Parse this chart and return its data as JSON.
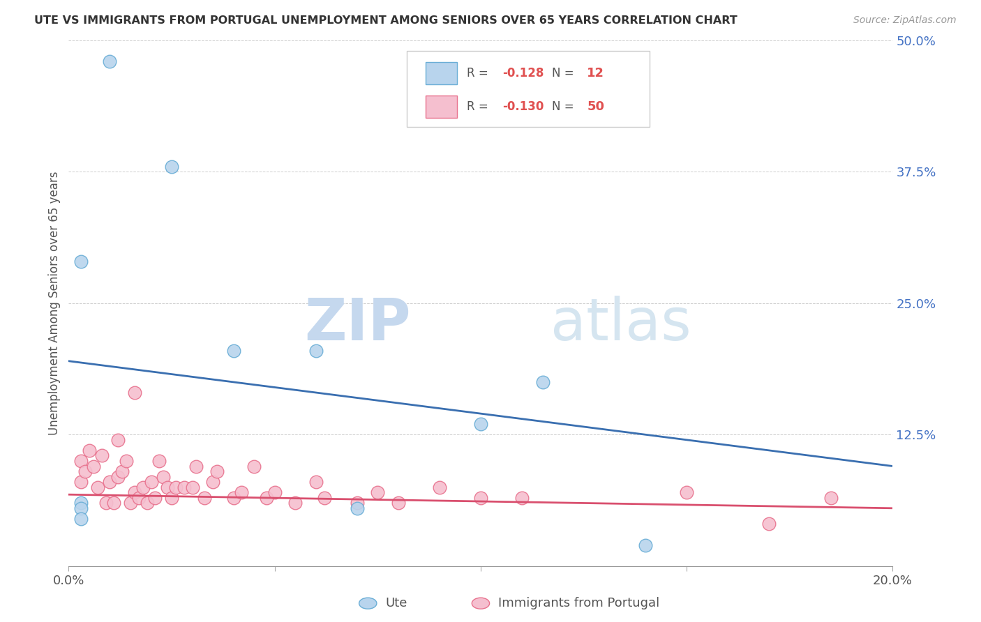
{
  "title": "UTE VS IMMIGRANTS FROM PORTUGAL UNEMPLOYMENT AMONG SENIORS OVER 65 YEARS CORRELATION CHART",
  "source": "Source: ZipAtlas.com",
  "ylabel": "Unemployment Among Seniors over 65 years",
  "xlim": [
    0.0,
    0.2
  ],
  "ylim": [
    0.0,
    0.5
  ],
  "xticks": [
    0.0,
    0.05,
    0.1,
    0.15,
    0.2
  ],
  "xtick_labels": [
    "0.0%",
    "",
    "",
    "",
    "20.0%"
  ],
  "yticks": [
    0.0,
    0.125,
    0.25,
    0.375,
    0.5
  ],
  "ytick_labels": [
    "",
    "12.5%",
    "25.0%",
    "37.5%",
    "50.0%"
  ],
  "legend_ute_R": "-0.128",
  "legend_ute_N": "12",
  "legend_port_R": "-0.130",
  "legend_port_N": "50",
  "ute_color": "#b8d4ed",
  "ute_edge_color": "#6aaed6",
  "port_color": "#f5bfcf",
  "port_edge_color": "#e8728e",
  "trendline_ute_color": "#3a6fb0",
  "trendline_port_color": "#d94f6e",
  "watermark_zip": "ZIP",
  "watermark_atlas": "atlas",
  "ute_x": [
    0.01,
    0.025,
    0.06,
    0.003,
    0.003,
    0.04,
    0.115,
    0.1,
    0.003,
    0.003,
    0.07,
    0.14
  ],
  "ute_y": [
    0.48,
    0.38,
    0.205,
    0.29,
    0.06,
    0.205,
    0.175,
    0.135,
    0.055,
    0.045,
    0.055,
    0.02
  ],
  "port_x": [
    0.003,
    0.003,
    0.004,
    0.005,
    0.006,
    0.007,
    0.008,
    0.009,
    0.01,
    0.011,
    0.012,
    0.012,
    0.013,
    0.014,
    0.015,
    0.016,
    0.016,
    0.017,
    0.018,
    0.019,
    0.02,
    0.021,
    0.022,
    0.023,
    0.024,
    0.025,
    0.026,
    0.028,
    0.03,
    0.031,
    0.033,
    0.035,
    0.036,
    0.04,
    0.042,
    0.045,
    0.048,
    0.05,
    0.055,
    0.06,
    0.062,
    0.07,
    0.075,
    0.08,
    0.09,
    0.1,
    0.11,
    0.15,
    0.17,
    0.185
  ],
  "port_y": [
    0.1,
    0.08,
    0.09,
    0.11,
    0.095,
    0.075,
    0.105,
    0.06,
    0.08,
    0.06,
    0.085,
    0.12,
    0.09,
    0.1,
    0.06,
    0.07,
    0.165,
    0.065,
    0.075,
    0.06,
    0.08,
    0.065,
    0.1,
    0.085,
    0.075,
    0.065,
    0.075,
    0.075,
    0.075,
    0.095,
    0.065,
    0.08,
    0.09,
    0.065,
    0.07,
    0.095,
    0.065,
    0.07,
    0.06,
    0.08,
    0.065,
    0.06,
    0.07,
    0.06,
    0.075,
    0.065,
    0.065,
    0.07,
    0.04,
    0.065
  ]
}
